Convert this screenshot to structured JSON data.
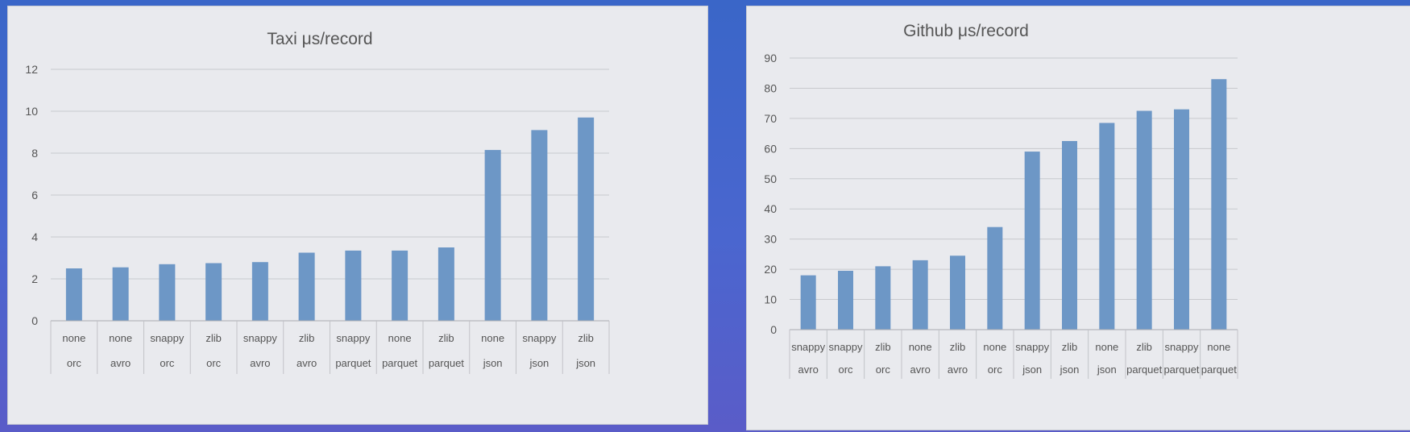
{
  "chart_data": [
    {
      "type": "bar",
      "title": "Taxi μs/record",
      "categories": [
        [
          "none",
          "orc"
        ],
        [
          "none",
          "avro"
        ],
        [
          "snappy",
          "orc"
        ],
        [
          "zlib",
          "orc"
        ],
        [
          "snappy",
          "avro"
        ],
        [
          "zlib",
          "avro"
        ],
        [
          "snappy",
          "parquet"
        ],
        [
          "none",
          "parquet"
        ],
        [
          "zlib",
          "parquet"
        ],
        [
          "none",
          "json"
        ],
        [
          "snappy",
          "json"
        ],
        [
          "zlib",
          "json"
        ]
      ],
      "values": [
        2.5,
        2.55,
        2.7,
        2.75,
        2.8,
        3.25,
        3.35,
        3.35,
        3.5,
        8.15,
        9.1,
        9.7
      ],
      "ylim": [
        0,
        12
      ],
      "yticks": [
        0,
        2,
        4,
        6,
        8,
        10,
        12
      ],
      "grid": true,
      "bar_color": "#6d97c6"
    },
    {
      "type": "bar",
      "title": "Github μs/record",
      "categories": [
        [
          "snappy",
          "avro"
        ],
        [
          "snappy",
          "orc"
        ],
        [
          "zlib",
          "orc"
        ],
        [
          "none",
          "avro"
        ],
        [
          "zlib",
          "avro"
        ],
        [
          "none",
          "orc"
        ],
        [
          "snappy",
          "json"
        ],
        [
          "zlib",
          "json"
        ],
        [
          "none",
          "json"
        ],
        [
          "zlib",
          "parquet"
        ],
        [
          "snappy",
          "parquet"
        ],
        [
          "none",
          "parquet"
        ]
      ],
      "values": [
        18,
        19.5,
        21,
        23,
        24.5,
        34,
        59,
        62.5,
        68.5,
        72.5,
        73,
        83
      ],
      "ylim": [
        0,
        90
      ],
      "yticks": [
        0,
        10,
        20,
        30,
        40,
        50,
        60,
        70,
        80,
        90
      ],
      "grid": true,
      "bar_color": "#6d97c6"
    }
  ]
}
